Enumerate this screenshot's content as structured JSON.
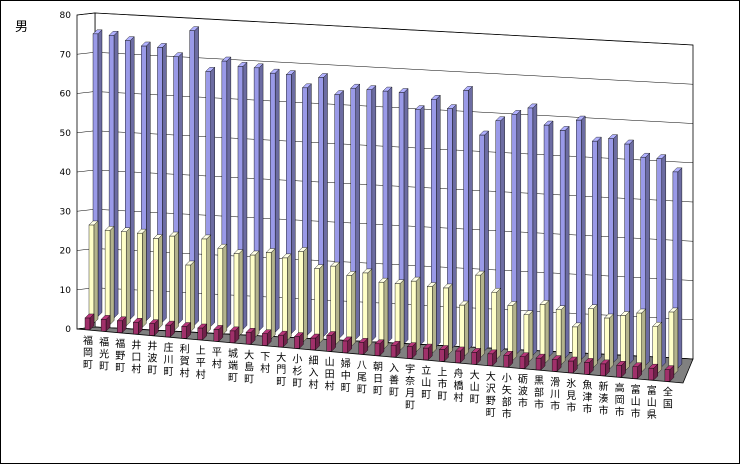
{
  "chart_data": {
    "type": "bar",
    "ylabel": "男",
    "ylim": [
      0,
      80
    ],
    "yticks": [
      "0",
      "10",
      "20",
      "30",
      "40",
      "50",
      "60",
      "70",
      "80"
    ],
    "grid": true,
    "categories": [
      "福岡町",
      "福光町",
      "福野町",
      "井口村",
      "井波町",
      "庄川町",
      "利賀村",
      "上平村",
      "平村",
      "城端町",
      "大島町",
      "下村",
      "大門町",
      "小杉町",
      "細入村",
      "山田村",
      "婦中町",
      "八尾町",
      "朝日町",
      "入善町",
      "宇奈月町",
      "立山町",
      "上市町",
      "舟橋村",
      "大山町",
      "大沢野町",
      "小矢部市",
      "砺波市",
      "黒部市",
      "滑川市",
      "氷見市",
      "魚津市",
      "新湊市",
      "高岡市",
      "富山市",
      "富山県",
      "全国"
    ],
    "series": [
      {
        "color": "#9a9ae8",
        "values": [
          72,
          72,
          71,
          70,
          70,
          68,
          75,
          65,
          68,
          67,
          67,
          66,
          66,
          63,
          66,
          62,
          64,
          64,
          64,
          64,
          60,
          63,
          61,
          66,
          55,
          59,
          61,
          63,
          59,
          58,
          61,
          56,
          57,
          56,
          53,
          53,
          50
        ]
      },
      {
        "color": "#ffffc8",
        "values": [
          25,
          24,
          24,
          24,
          23,
          24,
          17,
          24,
          22,
          21,
          21,
          22,
          21,
          23,
          19,
          20,
          18,
          19,
          17,
          17,
          18,
          17,
          17,
          13,
          21,
          17,
          14,
          12,
          15,
          14,
          10,
          15,
          13,
          14,
          15,
          12,
          16
        ]
      },
      {
        "color": "#a0306a",
        "values": [
          3,
          3,
          3,
          3,
          3,
          3,
          3,
          3,
          3,
          3,
          3,
          3,
          3,
          3,
          3,
          4,
          3,
          3,
          3,
          3,
          3,
          3,
          3,
          3,
          3,
          3,
          3,
          3,
          3,
          3,
          3,
          3,
          3,
          3,
          3,
          3,
          3
        ]
      }
    ]
  }
}
